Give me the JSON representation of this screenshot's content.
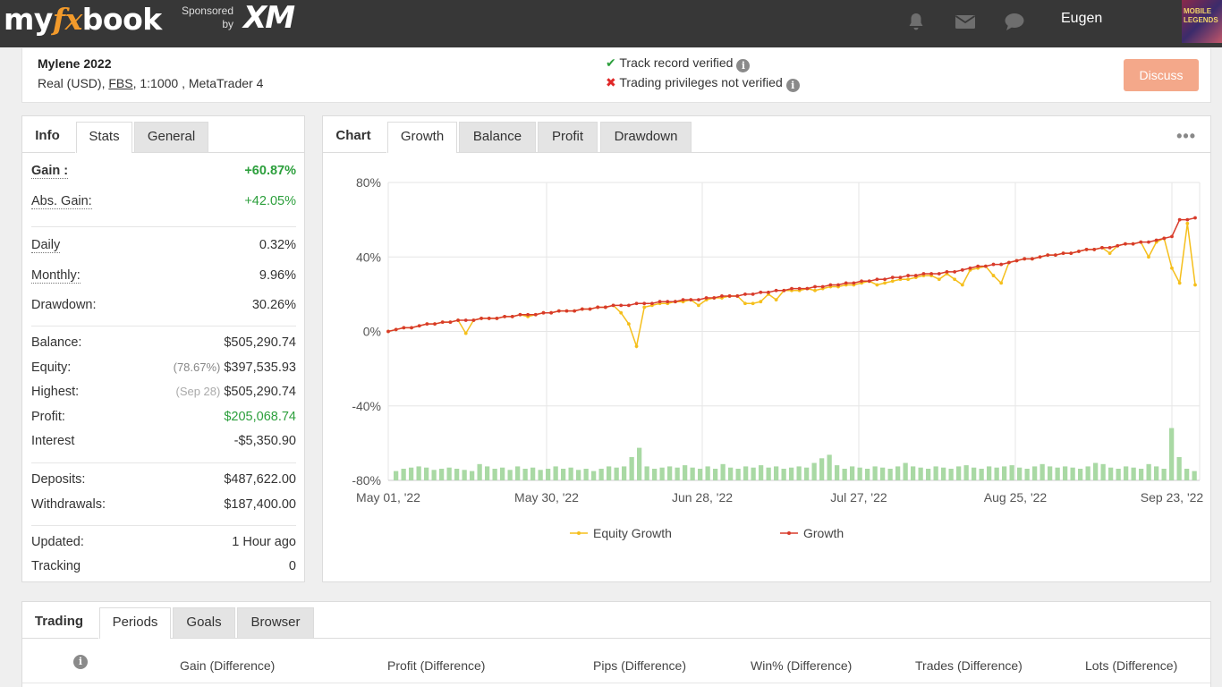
{
  "topbar": {
    "logo_pre": "my",
    "logo_fx": "fx",
    "logo_post": "book",
    "sponsored_line1": "Sponsored",
    "sponsored_line2": "by",
    "sponsor_brand": "XM",
    "user_name": "Eugen",
    "avatar_text": "MOBILE LEGENDS"
  },
  "account": {
    "name": "Mylene 2022",
    "type": "Real (USD), ",
    "broker": "FBS",
    "details": ", 1:1000 , MetaTrader 4",
    "track_record": "Track record verified",
    "trading_privileges": "Trading privileges not verified",
    "discuss_label": "Discuss"
  },
  "stats_panel": {
    "tabs": [
      "Info",
      "Stats",
      "General"
    ],
    "gain_label": "Gain :",
    "gain_value": "+60.87%",
    "abs_gain_label": "Abs. Gain:",
    "abs_gain_value": "+42.05%",
    "daily_label": "Daily",
    "daily_value": "0.32%",
    "monthly_label": "Monthly:",
    "monthly_value": "9.96%",
    "drawdown_label": "Drawdown:",
    "drawdown_value": "30.26%",
    "balance_label": "Balance:",
    "balance_value": "$505,290.74",
    "equity_label": "Equity:",
    "equity_pct": "(78.67%)",
    "equity_value": "$397,535.93",
    "highest_label": "Highest:",
    "highest_date": "(Sep 28)",
    "highest_value": "$505,290.74",
    "profit_label": "Profit:",
    "profit_value": "$205,068.74",
    "interest_label": "Interest",
    "interest_value": "-$5,350.90",
    "deposits_label": "Deposits:",
    "deposits_value": "$487,622.00",
    "withdrawals_label": "Withdrawals:",
    "withdrawals_value": "$187,400.00",
    "updated_label": "Updated:",
    "updated_value": "1 Hour ago",
    "tracking_label": "Tracking",
    "tracking_value": "0"
  },
  "chart_panel": {
    "tabs": [
      "Chart",
      "Growth",
      "Balance",
      "Profit",
      "Drawdown"
    ],
    "menu_icon": "more-dots-icon"
  },
  "chart_data": {
    "type": "line",
    "y_ticks": [
      "80%",
      "40%",
      "0%",
      "-40%",
      "-80%"
    ],
    "x_ticks": [
      "May 01, '22",
      "May 30, '22",
      "Jun 28, '22",
      "Jul 27, '22",
      "Aug 25, '22",
      "Sep 23, '22"
    ],
    "ylim": [
      -80,
      80
    ],
    "grid": true,
    "legend_position": "bottom",
    "series": [
      {
        "name": "Equity Growth",
        "color": "#f5bf1c",
        "values": [
          0,
          1,
          2,
          2,
          3,
          4,
          4,
          5,
          5,
          6,
          -1,
          6,
          7,
          7,
          7,
          8,
          8,
          9,
          8,
          9,
          10,
          10,
          11,
          11,
          11,
          12,
          12,
          13,
          13,
          14,
          10,
          4,
          -8,
          13,
          14,
          15,
          15,
          16,
          16,
          17,
          14,
          17,
          18,
          18,
          19,
          19,
          15,
          15,
          16,
          20,
          17,
          22,
          22,
          22,
          23,
          22,
          23,
          24,
          24,
          25,
          25,
          26,
          27,
          25,
          26,
          27,
          28,
          28,
          29,
          30,
          30,
          28,
          31,
          28,
          25,
          33,
          34,
          35,
          30,
          26,
          37,
          38,
          39,
          39,
          40,
          41,
          41,
          42,
          42,
          43,
          44,
          44,
          45,
          42,
          46,
          47,
          47,
          48,
          40,
          48,
          50,
          34,
          26,
          58,
          25
        ]
      },
      {
        "name": "Growth",
        "color": "#d83b2b",
        "values": [
          0,
          1,
          2,
          2,
          3,
          4,
          4,
          5,
          5,
          6,
          6,
          6,
          7,
          7,
          7,
          8,
          8,
          9,
          9,
          9,
          10,
          10,
          11,
          11,
          11,
          12,
          12,
          13,
          13,
          14,
          14,
          14,
          15,
          15,
          15,
          16,
          16,
          16,
          17,
          17,
          17,
          18,
          18,
          19,
          19,
          19,
          20,
          20,
          21,
          21,
          22,
          22,
          23,
          23,
          23,
          24,
          24,
          25,
          25,
          26,
          26,
          27,
          27,
          28,
          28,
          29,
          29,
          30,
          30,
          31,
          31,
          31,
          32,
          32,
          33,
          34,
          35,
          35,
          36,
          36,
          37,
          38,
          39,
          39,
          40,
          41,
          41,
          42,
          42,
          43,
          44,
          44,
          45,
          45,
          46,
          47,
          47,
          48,
          48,
          49,
          50,
          51,
          60,
          60,
          61
        ]
      }
    ],
    "volume_bars": [
      8,
      10,
      11,
      12,
      11,
      9,
      10,
      11,
      10,
      9,
      8,
      14,
      12,
      10,
      11,
      9,
      12,
      10,
      11,
      9,
      10,
      12,
      10,
      11,
      9,
      10,
      8,
      10,
      12,
      11,
      12,
      20,
      28,
      12,
      10,
      11,
      12,
      11,
      13,
      11,
      10,
      12,
      10,
      14,
      11,
      10,
      12,
      11,
      13,
      11,
      12,
      10,
      11,
      12,
      11,
      15,
      19,
      22,
      13,
      10,
      12,
      11,
      10,
      12,
      11,
      10,
      12,
      15,
      12,
      11,
      10,
      12,
      11,
      10,
      12,
      13,
      11,
      10,
      12,
      11,
      12,
      13,
      11,
      10,
      12,
      14,
      12,
      11,
      12,
      11,
      10,
      12,
      15,
      14,
      11,
      10,
      12,
      11,
      10,
      14,
      12,
      10,
      45,
      20,
      10,
      8
    ]
  },
  "trading_panel": {
    "tabs": [
      "Trading",
      "Periods",
      "Goals",
      "Browser"
    ],
    "columns": [
      "Gain (Difference)",
      "Profit (Difference)",
      "Pips (Difference)",
      "Win% (Difference)",
      "Trades (Difference)",
      "Lots (Difference)"
    ]
  }
}
